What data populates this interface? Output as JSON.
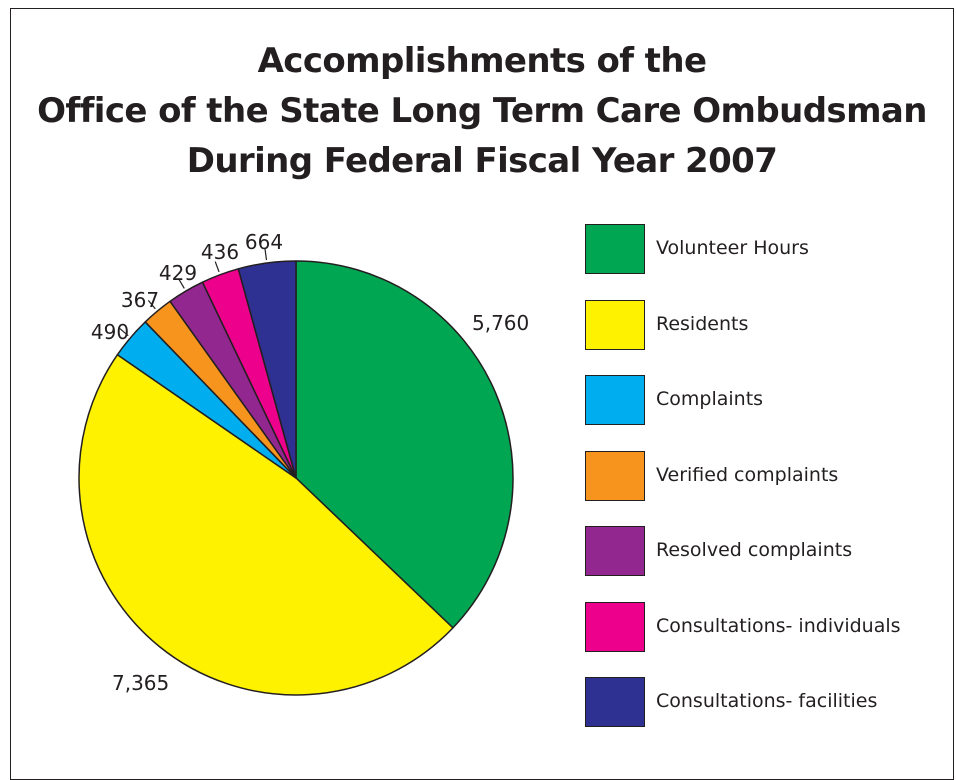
{
  "chart_data": {
    "type": "pie",
    "title_lines": [
      "Accomplishments of the",
      "Office of the State Long Term Care Ombudsman",
      "During Federal Fiscal Year 2007"
    ],
    "categories": [
      "Volunteer Hours",
      "Residents",
      "Complaints",
      "Verified complaints",
      "Resolved complaints",
      "Consultations- individuals",
      "Consultations- facilities"
    ],
    "values": [
      5760,
      7365,
      490,
      367,
      429,
      436,
      664
    ],
    "data_labels": [
      "5,760",
      "7,365",
      "490",
      "367",
      "429",
      "436",
      "664"
    ],
    "colors": [
      "#00a651",
      "#fff200",
      "#00aeef",
      "#f7941d",
      "#92278f",
      "#ec008c",
      "#2e3192"
    ],
    "start_angle": "12 o'clock",
    "direction": "clockwise",
    "legend_position": "right"
  }
}
